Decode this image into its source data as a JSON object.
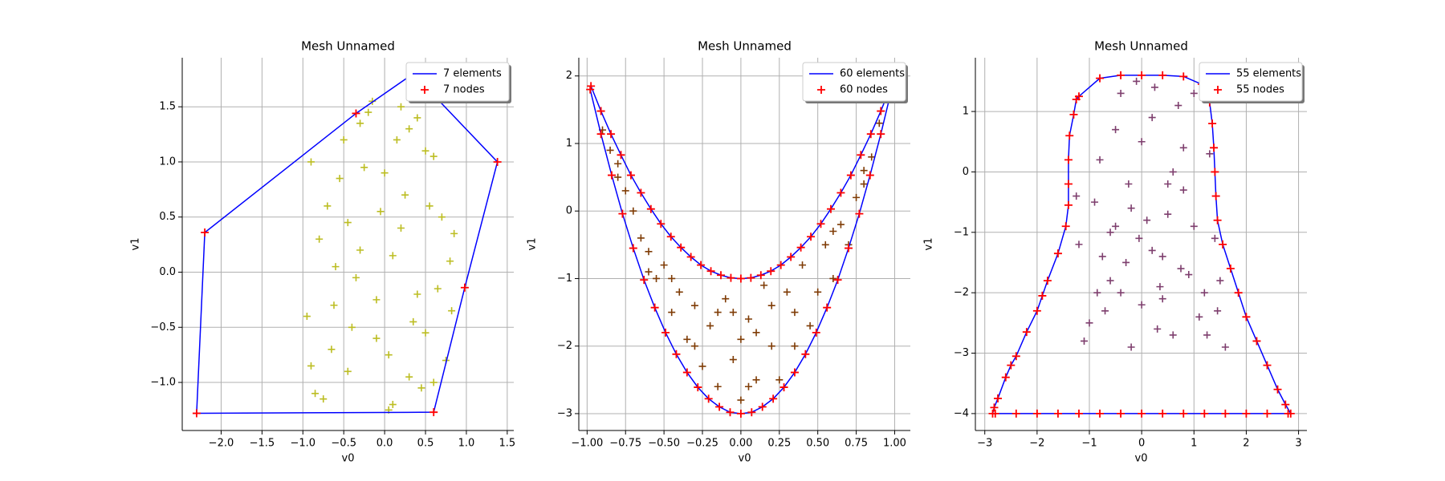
{
  "chart_data": [
    {
      "type": "mesh",
      "title": "Mesh Unnamed",
      "xlabel": "v0",
      "ylabel": "v1",
      "xlim": [
        -2.476,
        1.58
      ],
      "ylim": [
        -1.436,
        1.945
      ],
      "xticks": [
        {
          "value": -2,
          "label": "−2.0"
        },
        {
          "value": -1.5,
          "label": "−1.5"
        },
        {
          "value": -1,
          "label": "−1.0"
        },
        {
          "value": -0.5,
          "label": "−0.5"
        },
        {
          "value": 0,
          "label": "0.0"
        },
        0.5,
        {
          "value": 1,
          "label": "1.0"
        },
        1.5
      ],
      "yticks": [
        {
          "value": -1,
          "label": "−1.0"
        },
        {
          "value": -0.5,
          "label": "−0.5"
        },
        {
          "value": 0,
          "label": "0.0"
        },
        0.5,
        {
          "value": 1,
          "label": "1.0"
        },
        1.5
      ],
      "grid": true,
      "legend": "upper right",
      "points": {
        "color": "#bcbd22",
        "x": [
          -0.9,
          -0.85,
          -0.7,
          -0.62,
          -0.5,
          -0.45,
          -0.3,
          -0.2,
          -0.1,
          0,
          0.1,
          0.2,
          0.3,
          0.4,
          0.5,
          0.6,
          0.7,
          0.8,
          -0.95,
          -0.75,
          -0.55,
          -0.35,
          -0.15,
          0.05,
          0.25,
          0.45,
          0.65,
          0.85,
          -0.8,
          -0.6,
          -0.4,
          -0.25,
          0.15,
          0.35,
          0.55,
          0.75,
          -0.3,
          -0.1,
          0.1,
          0.3,
          0.5,
          -0.65,
          -0.05,
          0.2,
          0.6,
          0.82,
          -0.9,
          -0.45,
          0.05,
          0.4
        ],
        "y": [
          1.0,
          -1.1,
          0.6,
          -0.3,
          1.2,
          -0.9,
          0.2,
          1.45,
          -0.6,
          0.9,
          -1.2,
          0.4,
          1.3,
          -0.2,
          1.1,
          -1.0,
          0.5,
          0.1,
          -0.4,
          -1.15,
          0.85,
          -0.05,
          1.55,
          -0.75,
          0.7,
          -1.05,
          -0.15,
          0.35,
          0.3,
          0.05,
          -0.5,
          0.95,
          1.2,
          -0.45,
          0.6,
          -0.8,
          1.35,
          -0.25,
          0.15,
          -0.95,
          -0.55,
          -0.7,
          0.55,
          1.5,
          1.05,
          -0.35,
          -0.85,
          0.45,
          -1.25,
          1.4
        ]
      },
      "mesh": {
        "line_name": "7 elements",
        "line_color": "#0000ff",
        "node_name": "7 nodes",
        "node_color": "#ff0000",
        "x": [
          -2.3,
          -2.2,
          -0.35,
          0.35,
          1.38,
          0.98,
          0.6
        ],
        "y": [
          -1.28,
          0.36,
          1.44,
          1.8,
          1.0,
          -0.14,
          -1.27
        ]
      }
    },
    {
      "type": "mesh",
      "title": "Mesh Unnamed",
      "xlabel": "v0",
      "ylabel": "v1",
      "xlim": [
        -1.054,
        1.102
      ],
      "ylim": [
        -3.25,
        2.27
      ],
      "xticks": [
        {
          "value": -1,
          "label": "−1.00"
        },
        {
          "value": -0.75,
          "label": "−0.75"
        },
        {
          "value": -0.5,
          "label": "−0.50"
        },
        {
          "value": -0.25,
          "label": "−0.25"
        },
        {
          "value": 0,
          "label": "0.00"
        },
        0.25,
        {
          "value": 0.5,
          "label": "0.50"
        },
        0.75,
        {
          "value": 1,
          "label": "1.00"
        }
      ],
      "yticks": [
        {
          "value": -3,
          "label": "−3"
        },
        {
          "value": -2,
          "label": "−2"
        },
        {
          "value": -1,
          "label": "−1"
        },
        0,
        1,
        2
      ],
      "grid": true,
      "legend": "upper right",
      "points": {
        "color": "#7f3c06",
        "x": [
          -0.9,
          -0.85,
          -0.8,
          -0.75,
          -0.7,
          -0.65,
          -0.6,
          -0.55,
          -0.5,
          -0.45,
          -0.4,
          -0.35,
          -0.3,
          -0.25,
          -0.2,
          -0.15,
          -0.1,
          -0.05,
          0,
          0.05,
          0.1,
          0.15,
          0.2,
          0.25,
          0.3,
          0.35,
          0.4,
          0.45,
          0.5,
          0.55,
          0.6,
          0.65,
          0.7,
          0.75,
          0.8,
          0.85,
          0.9,
          -0.3,
          -0.15,
          0.1,
          0.2,
          -0.05,
          0.05,
          -0.6,
          0.6,
          -0.8,
          0.8,
          -0.45,
          0.35,
          0
        ],
        "y": [
          1.2,
          0.9,
          0.5,
          0.3,
          0,
          -0.4,
          -0.6,
          -1.0,
          -0.8,
          -1.5,
          -1.2,
          -1.9,
          -1.4,
          -2.3,
          -1.7,
          -2.6,
          -1.3,
          -2.2,
          -2.8,
          -1.6,
          -2.5,
          -1.1,
          -2.0,
          -2.5,
          -1.2,
          -2.0,
          -0.8,
          -1.7,
          -1.2,
          -0.5,
          -1.0,
          -0.2,
          -0.5,
          0.2,
          0.6,
          0.8,
          1.3,
          -2.0,
          -1.5,
          -1.8,
          -1.4,
          -1.5,
          -2.6,
          -0.9,
          -0.3,
          0.7,
          0.4,
          -1.0,
          -1.5,
          -1.9
        ]
      },
      "mesh": {
        "line_name": "60 elements",
        "line_color": "#0000ff",
        "node_name": "60 nodes",
        "node_color": "#ff0000",
        "x": [
          -0.98,
          -0.91,
          -0.84,
          -0.77,
          -0.7,
          -0.63,
          -0.56,
          -0.49,
          -0.42,
          -0.35,
          -0.28,
          -0.21,
          -0.14,
          -0.07,
          0,
          0.07,
          0.14,
          0.21,
          0.28,
          0.35,
          0.42,
          0.49,
          0.56,
          0.63,
          0.7,
          0.77,
          0.84,
          0.91,
          0.98,
          0.975,
          0.91,
          0.845,
          0.78,
          0.715,
          0.65,
          0.585,
          0.52,
          0.455,
          0.39,
          0.325,
          0.26,
          0.195,
          0.13,
          0.065,
          0,
          -0.065,
          -0.13,
          -0.195,
          -0.26,
          -0.325,
          -0.39,
          -0.455,
          -0.52,
          -0.585,
          -0.65,
          -0.715,
          -0.78,
          -0.845,
          -0.91,
          -0.975
        ],
        "y": [
          1.8,
          1.14,
          0.53,
          -0.04,
          -0.55,
          -1.02,
          -1.43,
          -1.8,
          -2.12,
          -2.39,
          -2.61,
          -2.78,
          -2.9,
          -2.98,
          -3,
          -2.98,
          -2.9,
          -2.78,
          -2.61,
          -2.39,
          -2.12,
          -1.8,
          -1.43,
          -1.02,
          -0.55,
          -0.04,
          0.53,
          1.14,
          1.8,
          1.85,
          1.48,
          1.14,
          0.83,
          0.53,
          0.27,
          0.03,
          -0.19,
          -0.38,
          -0.54,
          -0.68,
          -0.8,
          -0.89,
          -0.95,
          -0.99,
          -1,
          -0.99,
          -0.95,
          -0.89,
          -0.8,
          -0.68,
          -0.54,
          -0.38,
          -0.19,
          0.03,
          0.27,
          0.53,
          0.83,
          1.14,
          1.48,
          1.85
        ]
      }
    },
    {
      "type": "mesh",
      "title": "Mesh Unnamed",
      "xlabel": "v0",
      "ylabel": "v1",
      "xlim": [
        -3.18,
        3.16
      ],
      "ylim": [
        -4.28,
        1.89
      ],
      "xticks": [
        {
          "value": -3,
          "label": "−3"
        },
        {
          "value": -2,
          "label": "−2"
        },
        {
          "value": -1,
          "label": "−1"
        },
        0,
        1,
        2,
        3
      ],
      "yticks": [
        {
          "value": -4,
          "label": "−4"
        },
        {
          "value": -3,
          "label": "−3"
        },
        {
          "value": -2,
          "label": "−2"
        },
        {
          "value": -1,
          "label": "−1"
        },
        0,
        1
      ],
      "grid": true,
      "legend": "upper right",
      "points": {
        "color": "#7e3f6e",
        "x": [
          -1.2,
          -1.0,
          -0.8,
          -0.6,
          -0.4,
          -0.2,
          0,
          0.2,
          0.4,
          0.6,
          0.8,
          1.0,
          1.2,
          1.4,
          1.6,
          -1.1,
          -0.9,
          -0.7,
          -0.5,
          -0.3,
          -0.1,
          0.1,
          0.3,
          0.5,
          0.7,
          0.9,
          1.1,
          1.3,
          1.5,
          -0.6,
          -0.2,
          0.2,
          0.6,
          1.0,
          -0.4,
          0,
          0.4,
          0.8,
          -1.25,
          -0.75,
          -0.25,
          0.25,
          0.75,
          1.25,
          -0.5,
          0.5,
          -0.05,
          0.35,
          1.45,
          -0.85
        ],
        "y": [
          -1.2,
          -2.5,
          0.2,
          -1.8,
          1.3,
          -0.6,
          -2.2,
          0.9,
          -1.4,
          -2.7,
          0.4,
          -0.9,
          -2.0,
          -1.1,
          -2.9,
          -2.8,
          -0.5,
          -2.3,
          0.7,
          -1.5,
          1.5,
          -0.8,
          -2.6,
          -0.2,
          1.1,
          -1.7,
          -2.4,
          0.3,
          -1.8,
          -1.0,
          -2.9,
          -1.3,
          0.0,
          1.3,
          -2.0,
          0.5,
          -2.1,
          -0.3,
          -0.4,
          -1.4,
          -0.2,
          1.4,
          -1.6,
          -2.7,
          -0.9,
          -0.7,
          -1.1,
          -1.9,
          -2.3,
          -2.0
        ]
      },
      "mesh": {
        "line_name": "55 elements",
        "line_color": "#0000ff",
        "node_name": "55 nodes",
        "node_color": "#ff0000",
        "x": [
          -2.85,
          -2.82,
          -2.75,
          -2.6,
          -2.5,
          -2.4,
          -2.2,
          -2.0,
          -1.9,
          -1.8,
          -1.6,
          -1.45,
          -1.4,
          -1.4,
          -1.4,
          -1.38,
          -1.3,
          -1.25,
          -1.2,
          -0.8,
          -0.4,
          0,
          0.4,
          0.8,
          1.15,
          1.3,
          1.35,
          1.38,
          1.4,
          1.42,
          1.45,
          1.55,
          1.7,
          1.85,
          2.0,
          2.2,
          2.4,
          2.6,
          2.75,
          2.85,
          2.8,
          2.4,
          2.0,
          1.6,
          1.2,
          0.8,
          0.4,
          0,
          -0.4,
          -0.8,
          -1.2,
          -1.6,
          -2.0,
          -2.4,
          -2.8
        ],
        "y": [
          -4,
          -3.9,
          -3.75,
          -3.4,
          -3.2,
          -3.05,
          -2.65,
          -2.3,
          -2.05,
          -1.8,
          -1.35,
          -0.9,
          -0.55,
          -0.2,
          0.2,
          0.6,
          0.95,
          1.2,
          1.25,
          1.55,
          1.6,
          1.6,
          1.6,
          1.58,
          1.45,
          1.15,
          0.8,
          0.4,
          0,
          -0.4,
          -0.8,
          -1.2,
          -1.6,
          -2,
          -2.4,
          -2.8,
          -3.2,
          -3.6,
          -3.85,
          -4,
          -4,
          -4,
          -4,
          -4,
          -4,
          -4,
          -4,
          -4,
          -4,
          -4,
          -4,
          -4,
          -4,
          -4,
          -4
        ]
      }
    }
  ]
}
